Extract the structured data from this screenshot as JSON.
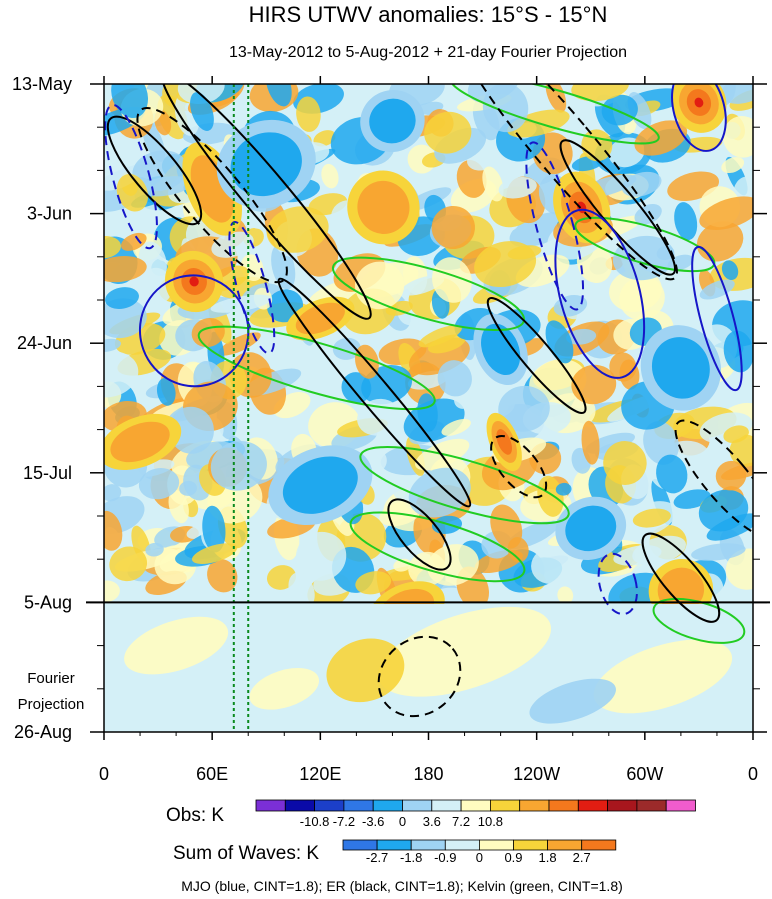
{
  "chart_data": {
    "type": "heatmap",
    "title": "HIRS UTWV anomalies: 15°S - 15°N",
    "subtitle": "13-May-2012 to 5-Aug-2012 + 21-day Fourier Projection",
    "x_ticks": [
      "0",
      "60E",
      "120E",
      "180",
      "120W",
      "60W",
      "0"
    ],
    "y_ticks": [
      "13-May",
      "3-Jun",
      "24-Jun",
      "15-Jul",
      "5-Aug",
      "26-Aug"
    ],
    "projection_label_line1": "Fourier",
    "projection_label_line2": "Projection",
    "obs_legend": {
      "label": "Obs: K",
      "tick_labels": [
        "-10.8",
        "-7.2",
        "-3.6",
        "0",
        "3.6",
        "7.2",
        "10.8"
      ],
      "colors": [
        "#7b2fd6",
        "#0a0aa8",
        "#1c3fc9",
        "#2f77e6",
        "#1fa8ee",
        "#9fd3f3",
        "#d4f0f7",
        "#fffcc0",
        "#f7d43a",
        "#f8a631",
        "#f4781d",
        "#e21d12",
        "#a8161d",
        "#9c2a2a",
        "#f15ccd"
      ]
    },
    "waves_legend": {
      "label": "Sum of Waves: K",
      "tick_labels": [
        "-2.7",
        "-1.8",
        "-0.9",
        "0",
        "0.9",
        "1.8",
        "2.7"
      ],
      "colors": [
        "#2f77e6",
        "#1fa8ee",
        "#9fd3f3",
        "#d4f0f7",
        "#fffcc0",
        "#f7d43a",
        "#f8a631",
        "#f4781d"
      ]
    },
    "footer": "MJO (blue, CINT=1.8); ER (black, CINT=1.8); Kelvin (green, CINT=1.8)",
    "x_range": [
      0,
      360
    ],
    "y_range_days": [
      0,
      105
    ],
    "observed_end_day": 84,
    "highlight_lon_band": [
      72,
      80
    ],
    "wave_colors": {
      "mjo": "#1616c8",
      "er": "#000000",
      "kelvin": "#22cc22"
    },
    "mjo_contours": [
      {
        "lon": 330,
        "day": 4,
        "dlon": 14,
        "ddays": 7,
        "dashed": false
      },
      {
        "lon": 275,
        "day": 34,
        "dlon": 22,
        "ddays": 14,
        "dashed": false
      },
      {
        "lon": 340,
        "day": 38,
        "dlon": 9,
        "ddays": 12,
        "dashed": false
      },
      {
        "lon": 50,
        "day": 40,
        "dlon": 30,
        "ddays": 9,
        "dashed": false
      },
      {
        "lon": 15,
        "day": 15,
        "dlon": 10,
        "ddays": 12,
        "dashed": true
      },
      {
        "lon": 82,
        "day": 33,
        "dlon": 8,
        "ddays": 11,
        "dashed": true
      },
      {
        "lon": 250,
        "day": 23,
        "dlon": 10,
        "ddays": 14,
        "dashed": true
      },
      {
        "lon": 285,
        "day": 81,
        "dlon": 10,
        "ddays": 5,
        "dashed": true
      }
    ],
    "er_contours": [
      {
        "lon": 90,
        "day": 18,
        "dlon": 12,
        "ddays": 26,
        "dashed": false
      },
      {
        "lon": 150,
        "day": 50,
        "dlon": 8,
        "ddays": 24,
        "dashed": false
      },
      {
        "lon": 175,
        "day": 73,
        "dlon": 10,
        "ddays": 7,
        "dashed": false
      },
      {
        "lon": 240,
        "day": 44,
        "dlon": 8,
        "ddays": 12,
        "dashed": false
      },
      {
        "lon": 285,
        "day": 20,
        "dlon": 10,
        "ddays": 14,
        "dashed": false
      },
      {
        "lon": 320,
        "day": 80,
        "dlon": 10,
        "ddays": 9,
        "dashed": false
      },
      {
        "lon": 28,
        "day": 14,
        "dlon": 12,
        "ddays": 11,
        "dashed": false
      },
      {
        "lon": 230,
        "day": 62,
        "dlon": 10,
        "ddays": 6,
        "dashed": true
      },
      {
        "lon": 175,
        "day": 96,
        "dlon": 24,
        "ddays": 6,
        "dashed": true
      },
      {
        "lon": 255,
        "day": 10,
        "dlon": 16,
        "ddays": 28,
        "dashed": true
      },
      {
        "lon": 60,
        "day": 18,
        "dlon": 16,
        "ddays": 18,
        "dashed": true
      },
      {
        "lon": 345,
        "day": 64,
        "dlon": 12,
        "ddays": 12,
        "dashed": true
      }
    ],
    "kelvin_contours": [
      {
        "lon": 180,
        "day": 34,
        "dlon": 55,
        "ddays": 4,
        "dashed": false
      },
      {
        "lon": 118,
        "day": 46,
        "dlon": 68,
        "ddays": 4,
        "dashed": false
      },
      {
        "lon": 200,
        "day": 65,
        "dlon": 60,
        "ddays": 4,
        "dashed": false
      },
      {
        "lon": 185,
        "day": 75,
        "dlon": 50,
        "ddays": 4,
        "dashed": false
      },
      {
        "lon": 250,
        "day": 4,
        "dlon": 60,
        "ddays": 3,
        "dashed": false
      },
      {
        "lon": 300,
        "day": 26,
        "dlon": 40,
        "ddays": 3,
        "dashed": false
      },
      {
        "lon": 330,
        "day": 87,
        "dlon": 26,
        "ddays": 3,
        "dashed": false
      }
    ],
    "warm_patches": [
      {
        "lon": 50,
        "day": 32,
        "rlon": 16,
        "rday": 5,
        "level": 3
      },
      {
        "lon": 330,
        "day": 3,
        "rlon": 15,
        "rday": 5,
        "level": 3
      },
      {
        "lon": 265,
        "day": 20,
        "rlon": 15,
        "rday": 6,
        "level": 3
      },
      {
        "lon": 222,
        "day": 58,
        "rlon": 8,
        "rday": 5,
        "level": 2
      },
      {
        "lon": 60,
        "day": 17,
        "rlon": 14,
        "rday": 8,
        "level": 1
      },
      {
        "lon": 155,
        "day": 20,
        "rlon": 20,
        "rday": 6,
        "level": 1
      },
      {
        "lon": 320,
        "day": 82,
        "rlon": 18,
        "rday": 5,
        "level": 1
      },
      {
        "lon": 20,
        "day": 58,
        "rlon": 24,
        "rday": 4,
        "level": 1
      },
      {
        "lon": 120,
        "day": 38,
        "rlon": 20,
        "rday": 3,
        "level": 1
      },
      {
        "lon": 168,
        "day": 85,
        "rlon": 22,
        "rday": 4,
        "level": 1
      }
    ],
    "cool_patches": [
      {
        "lon": 220,
        "day": 43,
        "rlon": 14,
        "rday": 6,
        "level": 1
      },
      {
        "lon": 120,
        "day": 65,
        "rlon": 30,
        "rday": 6,
        "level": 1
      },
      {
        "lon": 90,
        "day": 13,
        "rlon": 28,
        "rday": 7,
        "level": 1
      },
      {
        "lon": 320,
        "day": 46,
        "rlon": 22,
        "rday": 7,
        "level": 1
      },
      {
        "lon": 160,
        "day": 6,
        "rlon": 18,
        "rday": 5,
        "level": 1
      },
      {
        "lon": 270,
        "day": 72,
        "rlon": 20,
        "rday": 5,
        "level": 1
      }
    ]
  }
}
